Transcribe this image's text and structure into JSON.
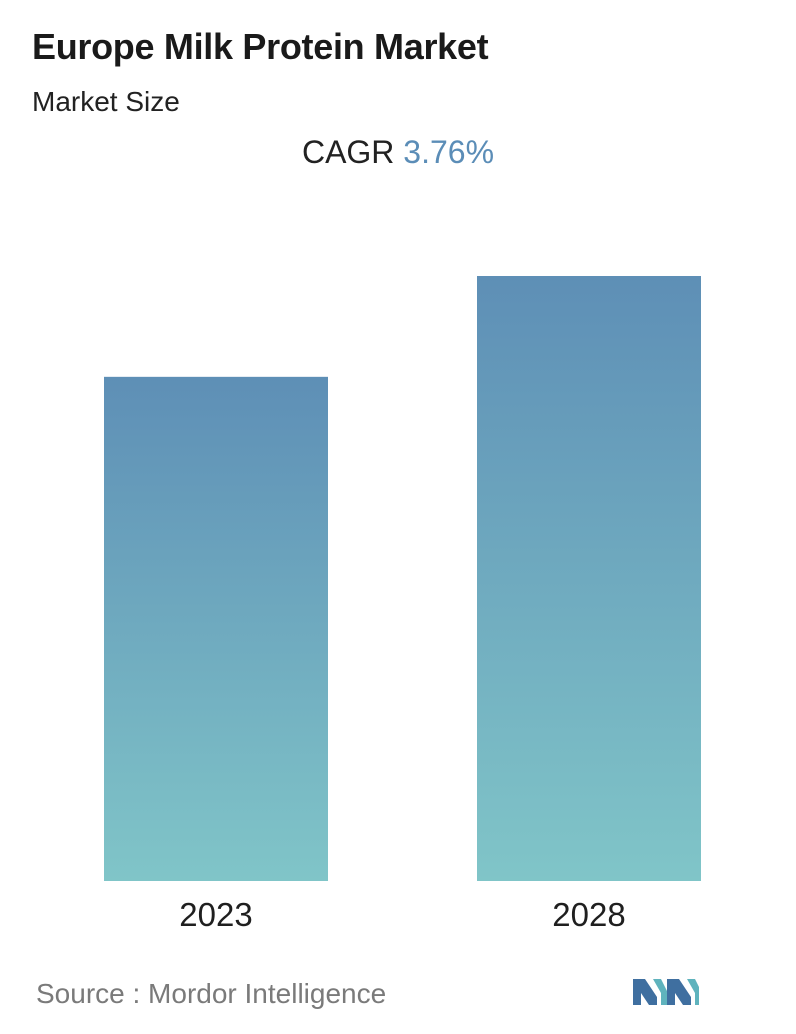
{
  "header": {
    "title": "Europe Milk Protein Market",
    "subtitle": "Market Size",
    "cagr_label": "CAGR",
    "cagr_value": "3.76%"
  },
  "footer": {
    "source": "Source :  Mordor Intelligence",
    "logo_icon": "mordor-intelligence-logo-icon"
  },
  "colors": {
    "bar_top": "#5e8fb6",
    "bar_bottom": "#80c5c8",
    "accent": "#5b8db7"
  },
  "chart_data": {
    "type": "bar",
    "categories": [
      "2023",
      "2028"
    ],
    "values": [
      1,
      1.2
    ],
    "title": "Europe Milk Protein Market",
    "xlabel": "",
    "ylabel": "",
    "ylim": [
      0,
      1.2
    ],
    "grid": false,
    "legend": "none"
  }
}
